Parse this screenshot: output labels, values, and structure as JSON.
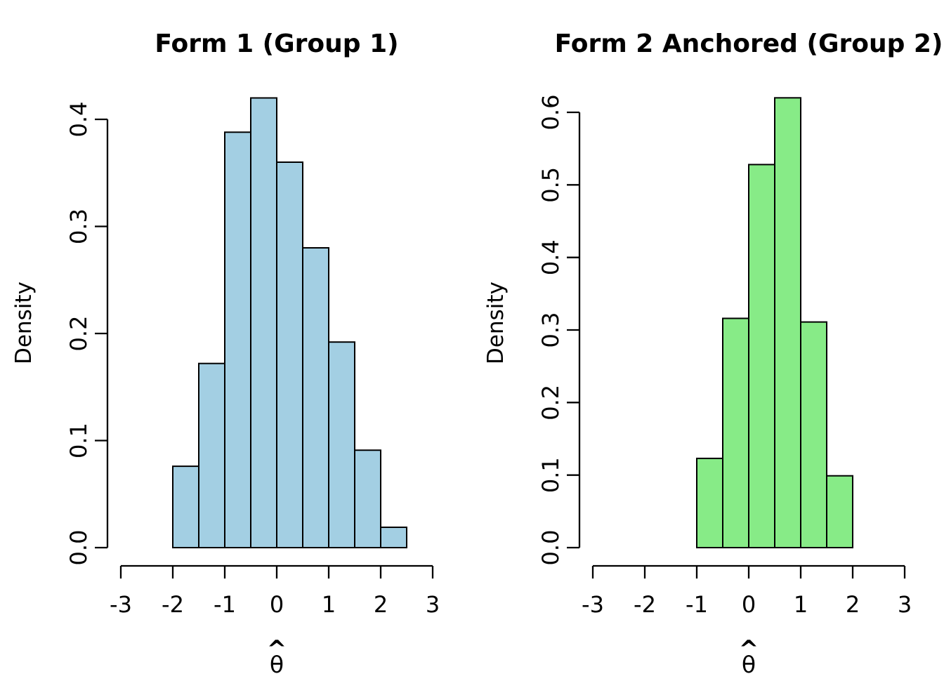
{
  "figure": {
    "background": "#ffffff",
    "axis_color": "#000000"
  },
  "chart_data": [
    {
      "type": "bar",
      "subtype": "histogram",
      "title": "Form 1 (Group 1)",
      "xlabel": {
        "symbol": "θ",
        "accent": "^"
      },
      "ylabel": "Density",
      "bar_color": "#a3cfe3",
      "bar_edge_color": "#000000",
      "bin_start": -2,
      "bin_width": 0.5,
      "densities": [
        0.076,
        0.172,
        0.388,
        0.42,
        0.36,
        0.28,
        0.192,
        0.091,
        0.019
      ],
      "x_ticks": [
        -3,
        -2,
        -1,
        0,
        1,
        2,
        3
      ],
      "y_ticks": [
        0.0,
        0.1,
        0.2,
        0.3,
        0.4
      ],
      "xlim": [
        -3,
        3
      ],
      "ylim": [
        0,
        0.42
      ],
      "grid": false,
      "legend": "none"
    },
    {
      "type": "bar",
      "subtype": "histogram",
      "title": "Form 2 Anchored (Group 2)",
      "xlabel": {
        "symbol": "θ",
        "accent": "^"
      },
      "ylabel": "Density",
      "bar_color": "#87eb87",
      "bar_edge_color": "#000000",
      "bin_start": -1,
      "bin_width": 0.5,
      "densities": [
        0.123,
        0.316,
        0.528,
        0.62,
        0.311,
        0.099
      ],
      "x_ticks": [
        -3,
        -2,
        -1,
        0,
        1,
        2,
        3
      ],
      "y_ticks": [
        0.0,
        0.1,
        0.2,
        0.3,
        0.4,
        0.5,
        0.6
      ],
      "xlim": [
        -3,
        3
      ],
      "ylim": [
        0,
        0.62
      ],
      "grid": false,
      "legend": "none"
    }
  ]
}
